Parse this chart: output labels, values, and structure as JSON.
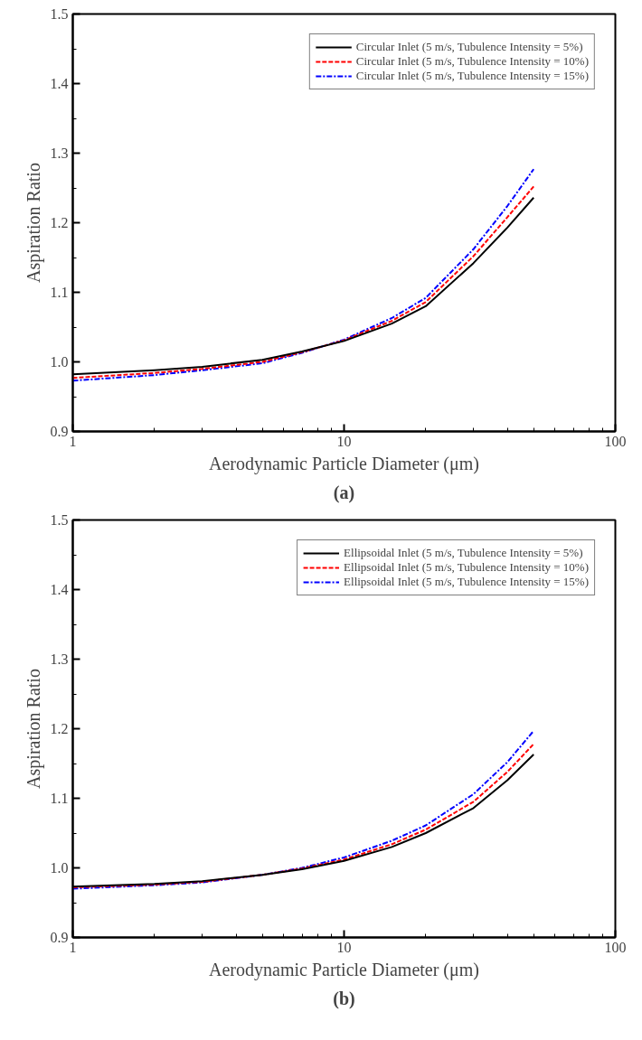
{
  "chart_data": [
    {
      "type": "line",
      "title": "(a)",
      "xlabel": "Aerodynamic Particle Diameter (μm)",
      "ylabel": "Aspiration Ratio",
      "log": "x",
      "grid": false,
      "legend": "top right",
      "xlim": [
        1,
        100
      ],
      "ylim": [
        0.9,
        1.5
      ],
      "xticks": [
        1,
        10,
        100
      ],
      "yticks": [
        {
          "value": 0.9,
          "label": "0.9"
        },
        {
          "value": 1.0,
          "label": "1.0"
        },
        {
          "value": 1.1,
          "label": "1.1"
        },
        {
          "value": 1.2,
          "label": "1.2"
        },
        {
          "value": 1.3,
          "label": "1.3"
        },
        {
          "value": 1.4,
          "label": "1.4"
        },
        {
          "value": 1.5,
          "label": "1.5"
        }
      ],
      "x": [
        1,
        2,
        3,
        5,
        7,
        10,
        15,
        20,
        30,
        40,
        50
      ],
      "series": [
        {
          "name": "Circular Inlet (5 m/s, Tubulence Intensity = 5%)",
          "color": "#000000",
          "line_style": "solid",
          "values": [
            0.982,
            0.988,
            0.993,
            1.003,
            1.015,
            1.03,
            1.055,
            1.08,
            1.142,
            1.193,
            1.236
          ]
        },
        {
          "name": "Circular Inlet (5 m/s, Tubulence Intensity = 10%)",
          "color": "#ff0000",
          "line_style": "dashed",
          "values": [
            0.977,
            0.984,
            0.99,
            1.0,
            1.014,
            1.031,
            1.059,
            1.086,
            1.152,
            1.208,
            1.252
          ]
        },
        {
          "name": "Circular Inlet (5 m/s, Tubulence Intensity = 15%)",
          "color": "#0000ff",
          "line_style": "dashdot",
          "values": [
            0.973,
            0.981,
            0.988,
            0.998,
            1.013,
            1.032,
            1.063,
            1.092,
            1.162,
            1.224,
            1.277
          ]
        }
      ]
    },
    {
      "type": "line",
      "title": "(b)",
      "xlabel": "Aerodynamic Particle Diameter (μm)",
      "ylabel": "Aspiration Ratio",
      "log": "x",
      "grid": false,
      "legend": "top right",
      "xlim": [
        1,
        100
      ],
      "ylim": [
        0.9,
        1.5
      ],
      "xticks": [
        1,
        10,
        100
      ],
      "yticks": [
        {
          "value": 0.9,
          "label": "0.9"
        },
        {
          "value": 1.0,
          "label": "1.0"
        },
        {
          "value": 1.1,
          "label": "1.1"
        },
        {
          "value": 1.2,
          "label": "1.2"
        },
        {
          "value": 1.3,
          "label": "1.3"
        },
        {
          "value": 1.4,
          "label": "1.4"
        },
        {
          "value": 1.5,
          "label": "1.5"
        }
      ],
      "x": [
        1,
        2,
        3,
        5,
        7,
        10,
        15,
        20,
        30,
        40,
        50
      ],
      "series": [
        {
          "name": "Ellipsoidal Inlet (5 m/s, Tubulence Intensity = 5%)",
          "color": "#000000",
          "line_style": "solid",
          "values": [
            0.973,
            0.977,
            0.981,
            0.99,
            0.998,
            1.01,
            1.03,
            1.05,
            1.086,
            1.126,
            1.163
          ]
        },
        {
          "name": "Ellipsoidal Inlet (5 m/s, Tubulence Intensity = 10%)",
          "color": "#ff0000",
          "line_style": "dashed",
          "values": [
            0.972,
            0.976,
            0.98,
            0.99,
            0.999,
            1.012,
            1.034,
            1.055,
            1.095,
            1.138,
            1.178
          ]
        },
        {
          "name": "Ellipsoidal Inlet (5 m/s, Tubulence Intensity = 15%)",
          "color": "#0000ff",
          "line_style": "dashdot",
          "values": [
            0.97,
            0.975,
            0.979,
            0.99,
            1.0,
            1.015,
            1.039,
            1.061,
            1.106,
            1.152,
            1.197
          ]
        }
      ]
    }
  ]
}
